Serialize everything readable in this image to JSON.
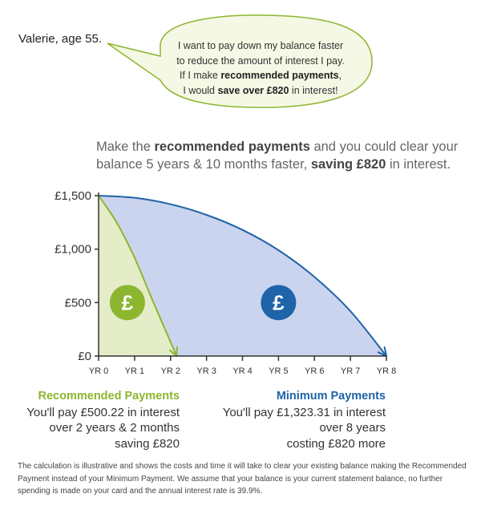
{
  "persona": "Valerie, age 55.",
  "bubble": {
    "line1": "I want to pay down my balance faster",
    "line2": "to reduce the amount of interest I pay.",
    "line3_pre": "If I make ",
    "line3_bold": "recommended payments",
    "line3_post": ",",
    "line4_pre": "I would ",
    "line4_bold": "save over £820",
    "line4_post": " in interest!"
  },
  "headline": {
    "pre": "Make the ",
    "bold1": "recommended payments",
    "mid": " and you could clear your balance 5 years & 10 months faster, ",
    "bold2": "saving £820",
    "post": " in interest."
  },
  "chart_data": {
    "type": "area",
    "y_ticks": [
      {
        "value": 0,
        "label": "£0"
      },
      {
        "value": 500,
        "label": "£500"
      },
      {
        "value": 1000,
        "label": "£1,000"
      },
      {
        "value": 1500,
        "label": "£1,500"
      }
    ],
    "x_ticks": [
      {
        "value": 0,
        "label": "YR 0"
      },
      {
        "value": 1,
        "label": "YR 1"
      },
      {
        "value": 2,
        "label": "YR 2"
      },
      {
        "value": 3,
        "label": "YR 3"
      },
      {
        "value": 4,
        "label": "YR 4"
      },
      {
        "value": 5,
        "label": "YR 5"
      },
      {
        "value": 6,
        "label": "YR 6"
      },
      {
        "value": 7,
        "label": "YR 7"
      },
      {
        "value": 8,
        "label": "YR 8"
      }
    ],
    "xlim": [
      0,
      8
    ],
    "ylim": [
      0,
      1500
    ],
    "series": [
      {
        "name": "Minimum Payments",
        "color": "#1f63a8",
        "fill": "#cbd4ee",
        "icon_symbol": "£",
        "x": [
          0,
          1,
          2,
          3,
          4,
          5,
          6,
          7,
          8
        ],
        "values": [
          1500,
          1480,
          1420,
          1320,
          1180,
          990,
          740,
          420,
          0
        ]
      },
      {
        "name": "Recommended Payments",
        "color": "#8cb62f",
        "fill": "#e4ecc8",
        "icon_symbol": "£",
        "x": [
          0,
          0.5,
          1,
          1.5,
          2.17
        ],
        "values": [
          1500,
          1250,
          920,
          520,
          0
        ]
      }
    ]
  },
  "cards": {
    "recommended": {
      "title": "Recommended Payments",
      "line1": "You'll pay £500.22 in interest",
      "line2": "over 2 years & 2 months",
      "line3": "saving £820"
    },
    "minimum": {
      "title": "Minimum Payments",
      "line1": "You'll pay £1,323.31 in interest",
      "line2": "over 8 years",
      "line3": "costing £820 more"
    }
  },
  "footnote": "The calculation is illustrative and shows the costs and time it will take to clear your existing balance making the Recommended Payment instead of your Minimum Payment. We assume that your balance is your current statement balance, no further spending is made on your card and the annual interest rate is 39.9%."
}
